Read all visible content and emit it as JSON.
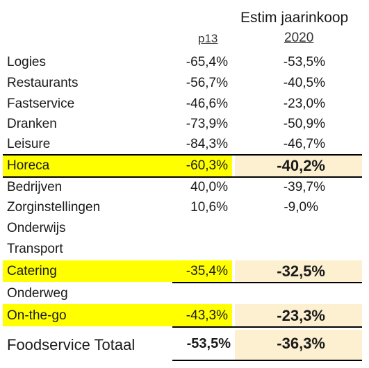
{
  "header": {
    "title": "Estim jaarinkoop",
    "col1": "p13",
    "col2": "2020"
  },
  "rows": [
    {
      "label": "Logies",
      "p13": "-65,4%",
      "year": "-53,5%"
    },
    {
      "label": "Restaurants",
      "p13": "-56,7%",
      "year": "-40,5%"
    },
    {
      "label": "Fastservice",
      "p13": "-46,6%",
      "year": "-23,0%"
    },
    {
      "label": "Dranken",
      "p13": "-73,9%",
      "year": "-50,9%"
    },
    {
      "label": "Leisure",
      "p13": "-84,3%",
      "year": "-46,7%"
    },
    {
      "label": "Horeca",
      "p13": "-60,3%",
      "year": "-40,2%"
    },
    {
      "label": "Bedrijven",
      "p13": "40,0%",
      "year": "-39,7%"
    },
    {
      "label": "Zorginstellingen",
      "p13": "10,6%",
      "year": "-9,0%"
    },
    {
      "label": "Onderwijs",
      "p13": "",
      "year": ""
    },
    {
      "label": "Transport",
      "p13": "",
      "year": ""
    },
    {
      "label": "Catering",
      "p13": "-35,4%",
      "year": "-32,5%"
    },
    {
      "label": "Onderweg",
      "p13": "",
      "year": ""
    },
    {
      "label": "On-the-go",
      "p13": "-43,3%",
      "year": "-23,3%"
    },
    {
      "label": "Foodservice Totaal",
      "p13": "-53,5%",
      "year": "-36,3%"
    }
  ],
  "colors": {
    "highlight_yellow": "#ffff00",
    "highlight_cream": "#fdf0d0"
  }
}
